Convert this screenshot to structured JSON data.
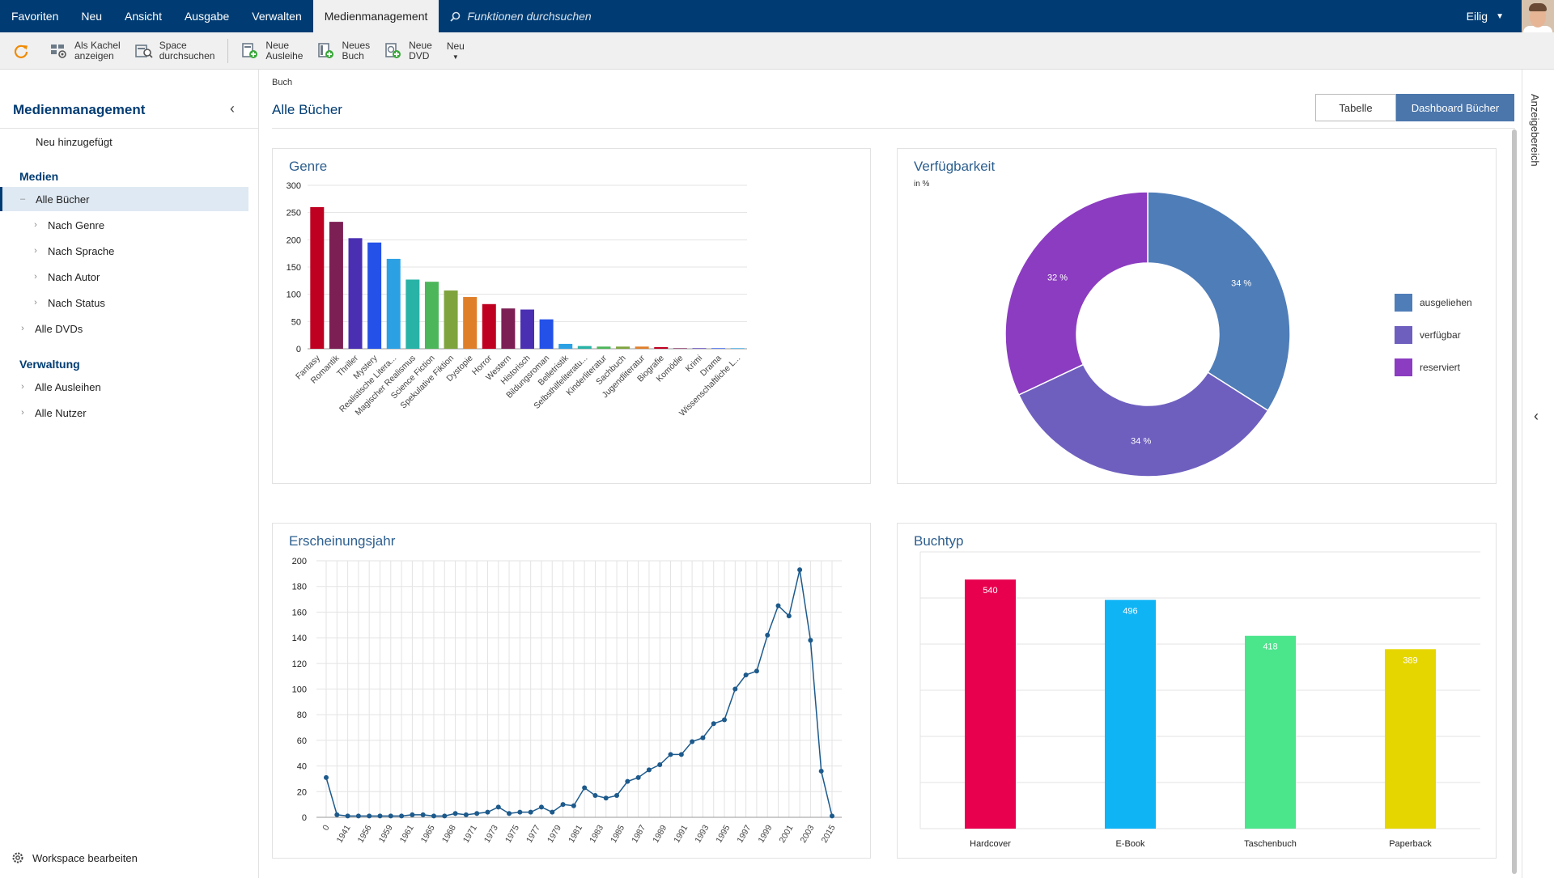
{
  "nav": {
    "items": [
      "Favoriten",
      "Neu",
      "Ansicht",
      "Ausgabe",
      "Verwalten",
      "Medienmanagement"
    ],
    "active": 5,
    "search_placeholder": "Funktionen durchsuchen",
    "user": "Eilig"
  },
  "toolbar": {
    "refresh_icon": "refresh-icon",
    "tile_line1": "Als Kachel",
    "tile_line2": "anzeigen",
    "space_line1": "Space",
    "space_line2": "durchsuchen",
    "loan_line1": "Neue",
    "loan_line2": "Ausleihe",
    "book_line1": "Neues",
    "book_line2": "Buch",
    "dvd_line1": "Neue",
    "dvd_line2": "DVD",
    "more_label": "Neu"
  },
  "sidebar": {
    "title": "Medienmanagement",
    "new_added": "Neu hinzugefügt",
    "medien_head": "Medien",
    "all_books": "Alle Bücher",
    "by_genre": "Nach Genre",
    "by_language": "Nach Sprache",
    "by_author": "Nach Autor",
    "by_status": "Nach Status",
    "all_dvds": "Alle DVDs",
    "admin_head": "Verwaltung",
    "all_loans": "Alle Ausleihen",
    "all_users": "Alle Nutzer",
    "footer": "Workspace bearbeiten"
  },
  "main": {
    "breadcrumb": "Buch",
    "title": "Alle Bücher",
    "view_table": "Tabelle",
    "view_dashboard": "Dashboard Bücher",
    "right_panel": "Anzeigebereich"
  },
  "chart_data": [
    {
      "type": "bar",
      "title": "Genre",
      "categories": [
        "Fantasy",
        "Romantik",
        "Thriller",
        "Mystery",
        "Realistische Litera...",
        "Magischer Realismus",
        "Science Fiction",
        "Spekulative Fiktion",
        "Dystopie",
        "Horror",
        "Western",
        "Historisch",
        "Bildungsroman",
        "Belletristik",
        "Selbsthilfeliteratu...",
        "Kinderliteratur",
        "Sachbuch",
        "Jugendliteratur",
        "Biografie",
        "Komödie",
        "Krimi",
        "Drama",
        "Wissenschaftliche L..."
      ],
      "values": [
        260,
        233,
        203,
        195,
        165,
        127,
        123,
        107,
        95,
        82,
        74,
        72,
        54,
        9,
        5,
        4,
        4,
        4,
        3,
        1,
        1,
        1,
        1
      ],
      "colors": [
        "#c00020",
        "#7c1f54",
        "#4a2fb3",
        "#2451e8",
        "#2ba1e4",
        "#28b3a6",
        "#4bb65a",
        "#7fa43e",
        "#e07f2a",
        "#c00020",
        "#7c1f54",
        "#4a2fb3",
        "#2451e8",
        "#2ba1e4",
        "#28b3a6",
        "#4bb65a",
        "#7fa43e",
        "#e07f2a",
        "#c00020",
        "#7c1f54",
        "#4a2fb3",
        "#2451e8",
        "#2ba1e4"
      ],
      "yticks": [
        "0",
        "50",
        "100",
        "150",
        "200",
        "250",
        "300"
      ],
      "ylim": [
        0,
        300
      ],
      "grid": true
    },
    {
      "type": "pie",
      "title": "Verfügbarkeit",
      "subtitle": "in %",
      "labels": [
        "ausgeliehen",
        "verfügbar",
        "reserviert"
      ],
      "values": [
        34,
        34,
        32
      ],
      "value_labels": [
        "34 %",
        "34 %",
        "32 %"
      ],
      "colors": [
        "#4f7db8",
        "#6e5fbf",
        "#8b3cc0"
      ],
      "legend_position": "right"
    },
    {
      "type": "line",
      "title": "Erscheinungsjahr",
      "xticks": [
        "0",
        "1941",
        "1956",
        "1959",
        "1961",
        "1965",
        "1968",
        "1971",
        "1973",
        "1975",
        "1977",
        "1979",
        "1981",
        "1983",
        "1985",
        "1987",
        "1989",
        "1991",
        "1993",
        "1995",
        "1997",
        "1999",
        "2001",
        "2003",
        "2015"
      ],
      "values": [
        31,
        2,
        1,
        1,
        1,
        1,
        1,
        1,
        2,
        2,
        1,
        1,
        3,
        2,
        3,
        4,
        8,
        3,
        4,
        4,
        8,
        4,
        10,
        9,
        23,
        17,
        15,
        17,
        28,
        31,
        37,
        41,
        49,
        49,
        59,
        62,
        73,
        76,
        100,
        111,
        114,
        142,
        165,
        157,
        193,
        138,
        36,
        1
      ],
      "yticks": [
        "0",
        "20",
        "40",
        "60",
        "80",
        "100",
        "120",
        "140",
        "160",
        "180",
        "200"
      ],
      "ylim": [
        0,
        200
      ],
      "color": "#1d5a8c",
      "grid": true
    },
    {
      "type": "bar",
      "title": "Buchtyp",
      "categories": [
        "Hardcover",
        "E-Book",
        "Taschenbuch",
        "Paperback"
      ],
      "values": [
        540,
        496,
        418,
        389
      ],
      "value_labels": [
        "540",
        "496",
        "418",
        "389"
      ],
      "colors": [
        "#e8004f",
        "#0fb4f5",
        "#4be58c",
        "#e6d600"
      ],
      "ylim": [
        0,
        600
      ],
      "grid": true
    }
  ]
}
